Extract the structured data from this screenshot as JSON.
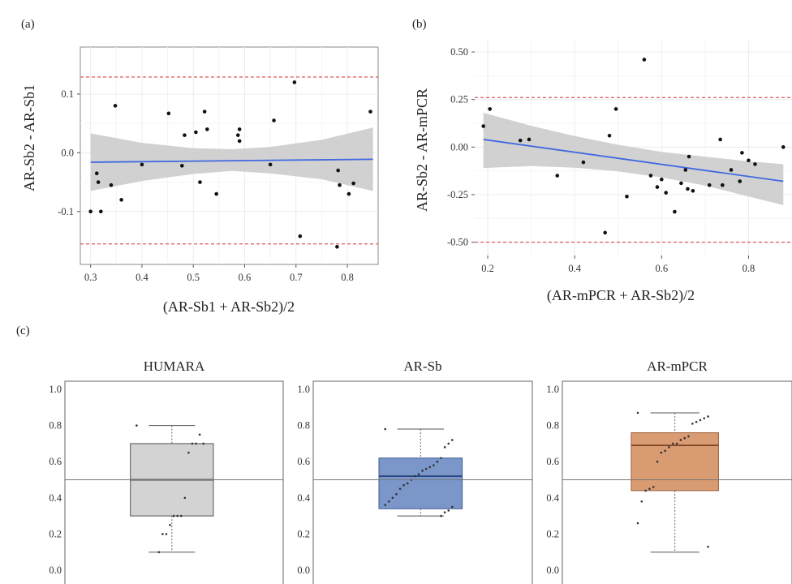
{
  "figure": {
    "panel_labels": [
      "(a)",
      "(b)",
      "(c)"
    ]
  },
  "chart_data": [
    {
      "type": "scatter",
      "panel": "(a)",
      "xlabel": "(AR-Sb1 + AR-Sb2)/2",
      "ylabel": "AR-Sb2 - AR-Sb1",
      "xlim": [
        0.28,
        0.86
      ],
      "ylim": [
        -0.19,
        0.18
      ],
      "xticks": [
        0.3,
        0.4,
        0.5,
        0.6,
        0.7,
        0.8
      ],
      "xtick_labels": [
        "0.3",
        "0.4",
        "0.5",
        "0.6",
        "0.7",
        "0.8"
      ],
      "yticks": [
        -0.1,
        0.0,
        0.1
      ],
      "ytick_labels": [
        "-0.1",
        "0.0",
        "0.1"
      ],
      "grid": true,
      "reference_lines": [
        0.129,
        -0.155
      ],
      "reference_color": "#e06666",
      "fit_line": {
        "x": [
          0.3,
          0.85
        ],
        "y": [
          -0.016,
          -0.011
        ],
        "color": "#4169e1"
      },
      "confidence_band": {
        "x": [
          0.3,
          0.4,
          0.5,
          0.575,
          0.65,
          0.75,
          0.85
        ],
        "upper": [
          0.033,
          0.017,
          0.008,
          0.006,
          0.01,
          0.022,
          0.043
        ],
        "lower": [
          -0.065,
          -0.048,
          -0.036,
          -0.031,
          -0.035,
          -0.045,
          -0.065
        ],
        "color": "#cccccc"
      },
      "points": [
        {
          "x": 0.3,
          "y": -0.1
        },
        {
          "x": 0.312,
          "y": -0.035
        },
        {
          "x": 0.315,
          "y": -0.05
        },
        {
          "x": 0.32,
          "y": -0.1
        },
        {
          "x": 0.34,
          "y": -0.055
        },
        {
          "x": 0.348,
          "y": 0.08
        },
        {
          "x": 0.36,
          "y": -0.08
        },
        {
          "x": 0.4,
          "y": -0.02
        },
        {
          "x": 0.452,
          "y": 0.067
        },
        {
          "x": 0.478,
          "y": -0.022
        },
        {
          "x": 0.483,
          "y": 0.03
        },
        {
          "x": 0.505,
          "y": 0.035
        },
        {
          "x": 0.513,
          "y": -0.05
        },
        {
          "x": 0.522,
          "y": 0.07
        },
        {
          "x": 0.527,
          "y": 0.04
        },
        {
          "x": 0.545,
          "y": -0.07
        },
        {
          "x": 0.587,
          "y": 0.03
        },
        {
          "x": 0.59,
          "y": 0.04
        },
        {
          "x": 0.59,
          "y": 0.02
        },
        {
          "x": 0.65,
          "y": -0.02
        },
        {
          "x": 0.657,
          "y": 0.055
        },
        {
          "x": 0.697,
          "y": 0.12
        },
        {
          "x": 0.708,
          "y": -0.142
        },
        {
          "x": 0.78,
          "y": -0.16
        },
        {
          "x": 0.782,
          "y": -0.03
        },
        {
          "x": 0.785,
          "y": -0.055
        },
        {
          "x": 0.803,
          "y": -0.07
        },
        {
          "x": 0.812,
          "y": -0.052
        },
        {
          "x": 0.845,
          "y": 0.07
        }
      ]
    },
    {
      "type": "scatter",
      "panel": "(b)",
      "xlabel": "(AR-mPCR + AR-Sb2)/2",
      "ylabel": "AR-Sb2 - AR-mPCR",
      "xlim": [
        0.17,
        0.9
      ],
      "ylim": [
        -0.57,
        0.56
      ],
      "xticks": [
        0.2,
        0.4,
        0.6,
        0.8
      ],
      "xtick_labels": [
        "0.2",
        "0.4",
        "0.6",
        "0.8"
      ],
      "yticks": [
        -0.5,
        -0.25,
        0.0,
        0.25,
        0.5
      ],
      "ytick_labels": [
        "-0.50",
        "-0.25",
        "0.00",
        "0.25",
        "0.50"
      ],
      "grid": true,
      "reference_lines": [
        0.26,
        -0.5
      ],
      "reference_color": "#e06666",
      "fit_line": {
        "x": [
          0.19,
          0.88
        ],
        "y": [
          0.04,
          -0.18
        ],
        "color": "#4169e1"
      },
      "confidence_band": {
        "x": [
          0.19,
          0.3,
          0.4,
          0.5,
          0.6,
          0.7,
          0.8,
          0.88
        ],
        "upper": [
          0.18,
          0.112,
          0.058,
          0.012,
          -0.025,
          -0.05,
          -0.075,
          -0.09
        ],
        "lower": [
          -0.11,
          -0.1,
          -0.108,
          -0.128,
          -0.16,
          -0.202,
          -0.26,
          -0.305
        ],
        "color": "#cccccc"
      },
      "points": [
        {
          "x": 0.19,
          "y": 0.11
        },
        {
          "x": 0.205,
          "y": 0.2
        },
        {
          "x": 0.275,
          "y": 0.035
        },
        {
          "x": 0.295,
          "y": 0.04
        },
        {
          "x": 0.36,
          "y": -0.15
        },
        {
          "x": 0.42,
          "y": -0.08
        },
        {
          "x": 0.47,
          "y": -0.45
        },
        {
          "x": 0.48,
          "y": 0.06
        },
        {
          "x": 0.495,
          "y": 0.2
        },
        {
          "x": 0.52,
          "y": -0.26
        },
        {
          "x": 0.56,
          "y": 0.46
        },
        {
          "x": 0.575,
          "y": -0.15
        },
        {
          "x": 0.59,
          "y": -0.21
        },
        {
          "x": 0.6,
          "y": -0.17
        },
        {
          "x": 0.61,
          "y": -0.24
        },
        {
          "x": 0.63,
          "y": -0.34
        },
        {
          "x": 0.645,
          "y": -0.19
        },
        {
          "x": 0.655,
          "y": -0.12
        },
        {
          "x": 0.66,
          "y": -0.22
        },
        {
          "x": 0.663,
          "y": -0.05
        },
        {
          "x": 0.672,
          "y": -0.23
        },
        {
          "x": 0.71,
          "y": -0.2
        },
        {
          "x": 0.735,
          "y": 0.04
        },
        {
          "x": 0.74,
          "y": -0.2
        },
        {
          "x": 0.76,
          "y": -0.12
        },
        {
          "x": 0.78,
          "y": -0.18
        },
        {
          "x": 0.785,
          "y": -0.03
        },
        {
          "x": 0.8,
          "y": -0.07
        },
        {
          "x": 0.815,
          "y": -0.09
        },
        {
          "x": 0.88,
          "y": 0.0
        }
      ]
    },
    {
      "type": "box",
      "panel": "(c)",
      "ylim": [
        0.0,
        1.0
      ],
      "yticks": [
        0.0,
        0.2,
        0.4,
        0.6,
        0.8,
        1.0
      ],
      "ytick_labels": [
        "0.0",
        "0.2",
        "0.4",
        "0.6",
        "0.8",
        "1.0"
      ],
      "reference_line": 0.5,
      "series": [
        {
          "name": "HUMARA",
          "color": "#d3d3d3",
          "edge": "#555555",
          "median_color": "#222222",
          "whisker_low": 0.1,
          "q1": 0.3,
          "median": 0.5,
          "q3": 0.7,
          "whisker_high": 0.8,
          "points": [
            0.8,
            0.7,
            0.75,
            0.7,
            0.7,
            0.65,
            0.4,
            0.3,
            0.3,
            0.3,
            0.25,
            0.2,
            0.2,
            0.1
          ]
        },
        {
          "name": "AR-Sb",
          "color": "#7b96c9",
          "edge": "#3e5a91",
          "median_color": "#2d477d",
          "whisker_low": 0.3,
          "q1": 0.34,
          "median": 0.52,
          "q3": 0.62,
          "whisker_high": 0.78,
          "points": [
            0.78,
            0.72,
            0.7,
            0.68,
            0.62,
            0.6,
            0.58,
            0.57,
            0.56,
            0.55,
            0.53,
            0.52,
            0.5,
            0.48,
            0.47,
            0.45,
            0.42,
            0.4,
            0.38,
            0.36,
            0.35,
            0.33,
            0.32,
            0.3
          ]
        },
        {
          "name": "AR-mPCR",
          "color": "#d99b72",
          "edge": "#9c5f3a",
          "median_color": "#7a4322",
          "whisker_low": 0.1,
          "q1": 0.44,
          "median": 0.69,
          "q3": 0.76,
          "whisker_high": 0.87,
          "points": [
            0.87,
            0.85,
            0.84,
            0.83,
            0.82,
            0.81,
            0.74,
            0.73,
            0.72,
            0.7,
            0.7,
            0.68,
            0.66,
            0.65,
            0.6,
            0.46,
            0.45,
            0.44,
            0.38,
            0.26,
            0.13
          ]
        }
      ]
    }
  ]
}
